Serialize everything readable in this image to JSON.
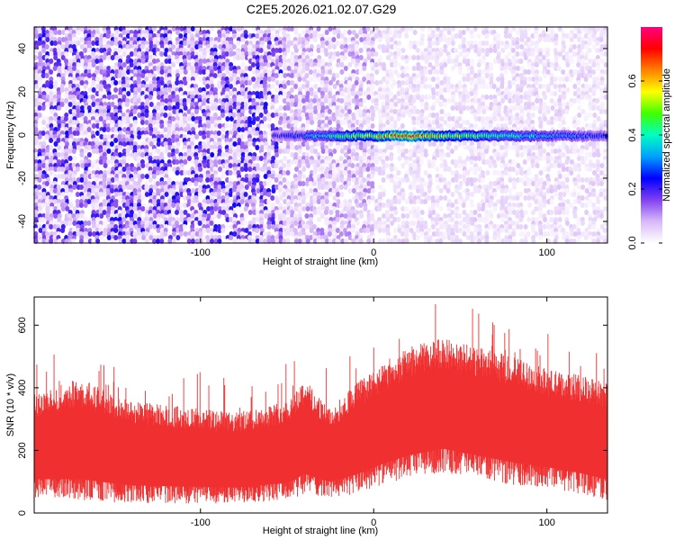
{
  "title": "C2E5.2026.021.02.07.G29",
  "chart_data": [
    {
      "type": "heatmap",
      "name": "spectrogram",
      "xlabel": "Height of straight line (km)",
      "ylabel": "Frequency (Hz)",
      "xlim": [
        -196,
        135
      ],
      "ylim": [
        -50,
        50
      ],
      "x_ticks": [
        -100,
        0,
        100
      ],
      "y_ticks": [
        -40,
        -20,
        0,
        20,
        40
      ],
      "colorbar": {
        "label": "Normalized spectral amplitude",
        "range": [
          0,
          0.8
        ],
        "ticks": [
          0.0,
          0.2,
          0.4,
          0.6
        ],
        "colors": [
          "#ffffff",
          "#d8b8f8",
          "#8040f0",
          "#0000ff",
          "#00a0ff",
          "#00ffc0",
          "#40ff00",
          "#ffff00",
          "#ff8000",
          "#ff0000",
          "#ff0080"
        ]
      },
      "background_regions": [
        {
          "x_range": [
            -196,
            -52
          ],
          "mean_amplitude": 0.09
        },
        {
          "x_range": [
            -52,
            0
          ],
          "mean_amplitude": 0.05
        },
        {
          "x_range": [
            0,
            135
          ],
          "mean_amplitude": 0.025
        }
      ],
      "signal_line": {
        "frequency_hz": 0,
        "x_start": -58,
        "x_end": 135,
        "points": [
          {
            "x": -58,
            "amp": 0.22
          },
          {
            "x": -40,
            "amp": 0.28
          },
          {
            "x": -20,
            "amp": 0.45
          },
          {
            "x": 0,
            "amp": 0.55
          },
          {
            "x": 15,
            "amp": 0.72
          },
          {
            "x": 40,
            "amp": 0.55
          },
          {
            "x": 70,
            "amp": 0.45
          },
          {
            "x": 100,
            "amp": 0.32
          },
          {
            "x": 135,
            "amp": 0.25
          }
        ]
      }
    },
    {
      "type": "area",
      "name": "snr",
      "xlabel": "Height of straight line (km)",
      "ylabel": "SNR (10 * v/v)",
      "xlim": [
        -196,
        135
      ],
      "ylim": [
        0,
        690
      ],
      "x_ticks": [
        -100,
        0,
        100
      ],
      "y_ticks": [
        0,
        200,
        400,
        600
      ],
      "color": "#f03030",
      "envelope": [
        {
          "x": -196,
          "low": 50,
          "high": 380
        },
        {
          "x": -170,
          "low": 40,
          "high": 430
        },
        {
          "x": -140,
          "low": 30,
          "high": 360
        },
        {
          "x": -110,
          "low": 30,
          "high": 340
        },
        {
          "x": -80,
          "low": 30,
          "high": 320
        },
        {
          "x": -50,
          "low": 40,
          "high": 360
        },
        {
          "x": -40,
          "low": 60,
          "high": 430
        },
        {
          "x": -25,
          "low": 50,
          "high": 330
        },
        {
          "x": -10,
          "low": 60,
          "high": 420
        },
        {
          "x": 5,
          "low": 90,
          "high": 470
        },
        {
          "x": 20,
          "low": 110,
          "high": 530
        },
        {
          "x": 40,
          "low": 130,
          "high": 560
        },
        {
          "x": 60,
          "low": 110,
          "high": 530
        },
        {
          "x": 80,
          "low": 90,
          "high": 500
        },
        {
          "x": 100,
          "low": 80,
          "high": 460
        },
        {
          "x": 120,
          "low": 60,
          "high": 440
        },
        {
          "x": 135,
          "low": 40,
          "high": 420
        }
      ]
    }
  ]
}
